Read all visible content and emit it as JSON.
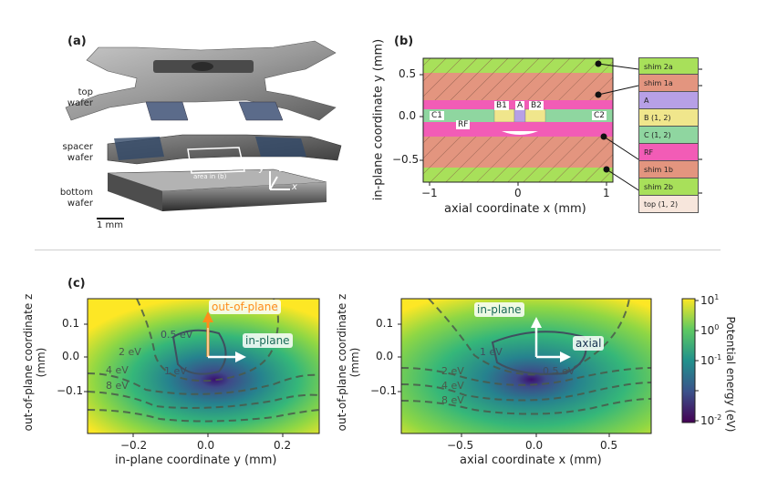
{
  "panel_a": {
    "label": "(a)",
    "top_wafer": [
      "top",
      "wafer"
    ],
    "spacer_wafer": [
      "spacer",
      "wafer"
    ],
    "bottom_wafer": [
      "bottom",
      "wafer"
    ],
    "area_label": "area in (b)",
    "axes": {
      "x": "x",
      "y": "y",
      "z": "z"
    },
    "scale_bar": "1 mm"
  },
  "panel_b": {
    "label": "(b)",
    "electrodes_inner": {
      "B1": "B1",
      "A": "A",
      "B2": "B2",
      "C1": "C1",
      "C2": "C2",
      "RF": "RF"
    },
    "legend": [
      "shim 2a",
      "shim 1a",
      "A",
      "B (1, 2)",
      "C (1, 2)",
      "RF",
      "shim 1b",
      "shim 2b",
      "top (1, 2)"
    ],
    "legend_colors": [
      "#a8e05a",
      "#e3957f",
      "#b7a0e6",
      "#f0e68c",
      "#8fd6a0",
      "#f25cb6",
      "#e3957f",
      "#a8e05a",
      "#f7e6dc"
    ]
  },
  "panel_c": {
    "label": "(c)",
    "left_arrows": {
      "up": "out-of-plane",
      "right": "in-plane"
    },
    "right_arrows": {
      "up": "in-plane",
      "right": "axial"
    },
    "left_contours": [
      "0.5 eV",
      "1 eV",
      "2 eV",
      "4 eV",
      "8 eV"
    ],
    "right_contours": [
      "1 eV",
      "0.5 eV",
      "2 eV",
      "4 eV",
      "8 eV"
    ],
    "colorbar_label": "Potential energy (eV)",
    "colorbar_ticks": [
      "10",
      "1",
      "0",
      "-1",
      "-2"
    ]
  },
  "chart_data": [
    {
      "type": "other",
      "xlabel": "axial coordinate x (mm)",
      "ylabel": "in-plane coordinate y (mm)",
      "x_ticks": [
        "−1",
        "0",
        "1"
      ],
      "y_ticks": [
        "0.5",
        "0.0",
        "−0.5"
      ],
      "xlim": [
        -1.1,
        1.1
      ],
      "ylim": [
        -0.75,
        0.75
      ]
    },
    {
      "type": "heatmap",
      "xlabel": "in-plane coordinate y (mm)",
      "ylabel": "out-of-plane coordinate z (mm)",
      "x_ticks": [
        "−0.2",
        "0.0",
        "0.2"
      ],
      "y_ticks": [
        "0.1",
        "0.0",
        "−0.1"
      ],
      "xlim": [
        -0.3,
        0.3
      ],
      "ylim": [
        -0.18,
        0.18
      ],
      "log_color_scale": true
    },
    {
      "type": "heatmap",
      "xlabel": "axial coordinate x (mm)",
      "ylabel": "out-of-plane coordinate z (mm)",
      "x_ticks": [
        "−0.5",
        "0.0",
        "0.5"
      ],
      "y_ticks": [
        "0.1",
        "0.0",
        "−0.1"
      ],
      "xlim": [
        -0.85,
        0.85
      ],
      "ylim": [
        -0.18,
        0.18
      ],
      "log_color_scale": true
    }
  ]
}
